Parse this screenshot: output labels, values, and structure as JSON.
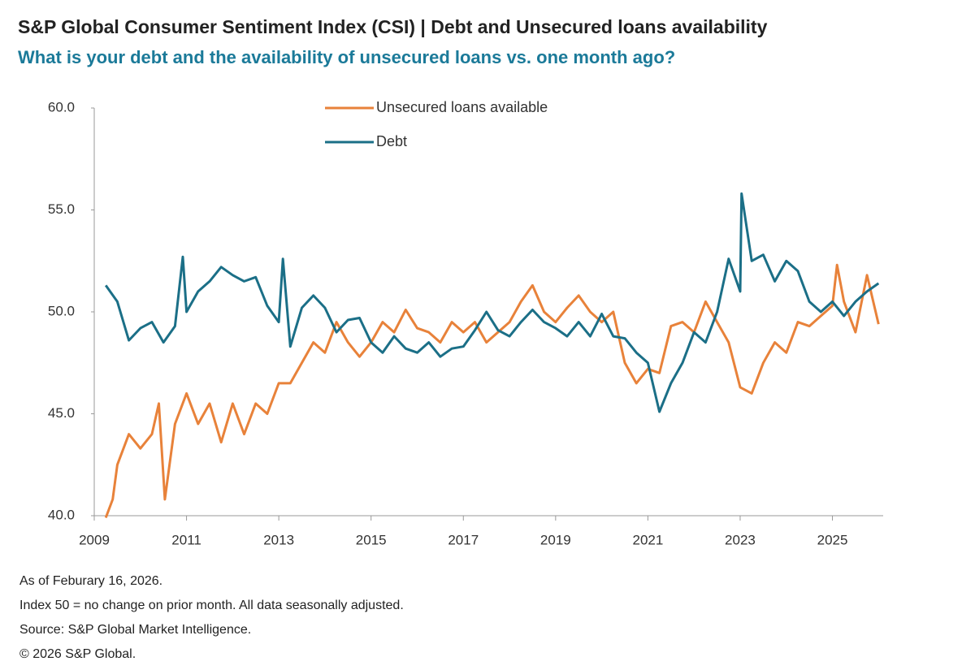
{
  "chart_data": {
    "type": "line",
    "title": "S&P Global Consumer Sentiment Index (CSI) | Debt and Unsecured loans availability",
    "subtitle": "What is your debt and the availability of unsecured loans vs. one month ago?",
    "notes": [
      "As of Feburary 16, 2026.",
      "Index 50 = no change on prior month. All data seasonally adjusted.",
      "Source: S&P Global Market Intelligence.",
      "© 2026 S&P Global."
    ],
    "xlim": [
      2009,
      2026.1
    ],
    "xticks": [
      2009,
      2011,
      2013,
      2015,
      2017,
      2019,
      2021,
      2023,
      2025
    ],
    "ylim": [
      40,
      60
    ],
    "yticks": [
      {
        "value": 40,
        "label": "40.0"
      },
      {
        "value": 45,
        "label": "45.0"
      },
      {
        "value": 50,
        "label": "50.0"
      },
      {
        "value": 55,
        "label": "55.0"
      },
      {
        "value": 60,
        "label": "60.0"
      }
    ],
    "grid": false,
    "series": [
      {
        "name": "Unsecured loans available",
        "color": "#e8823a",
        "x": [
          2009.25,
          2009.4,
          2009.5,
          2009.75,
          2010.0,
          2010.25,
          2010.4,
          2010.53,
          2010.75,
          2011.0,
          2011.25,
          2011.5,
          2011.75,
          2012.0,
          2012.25,
          2012.5,
          2012.75,
          2013.0,
          2013.25,
          2013.5,
          2013.75,
          2014.0,
          2014.25,
          2014.5,
          2014.75,
          2015.0,
          2015.25,
          2015.5,
          2015.75,
          2016.0,
          2016.25,
          2016.5,
          2016.75,
          2017.0,
          2017.25,
          2017.5,
          2017.75,
          2018.0,
          2018.25,
          2018.5,
          2018.75,
          2019.0,
          2019.25,
          2019.5,
          2019.75,
          2020.0,
          2020.25,
          2020.5,
          2020.75,
          2021.0,
          2021.25,
          2021.5,
          2021.75,
          2022.0,
          2022.25,
          2022.5,
          2022.75,
          2023.0,
          2023.25,
          2023.5,
          2023.75,
          2024.0,
          2024.25,
          2024.5,
          2024.75,
          2025.0,
          2025.1,
          2025.25,
          2025.5,
          2025.75,
          2026.0
        ],
        "values": [
          39.9,
          40.8,
          42.5,
          44.0,
          43.3,
          44.0,
          45.5,
          40.8,
          44.5,
          46.0,
          44.5,
          45.5,
          43.6,
          45.5,
          44.0,
          45.5,
          45.0,
          46.5,
          46.5,
          47.5,
          48.5,
          48.0,
          49.5,
          48.5,
          47.8,
          48.5,
          49.5,
          49.0,
          50.1,
          49.2,
          49.0,
          48.5,
          49.5,
          49.0,
          49.5,
          48.5,
          49.0,
          49.5,
          50.5,
          51.3,
          50.0,
          49.5,
          50.2,
          50.8,
          50.0,
          49.5,
          50.0,
          47.5,
          46.5,
          47.2,
          47.0,
          49.3,
          49.5,
          49.0,
          50.5,
          49.5,
          48.5,
          46.3,
          46.0,
          47.5,
          48.5,
          48.0,
          49.5,
          49.3,
          49.8,
          50.3,
          52.3,
          50.5,
          49.0,
          51.8,
          49.4
        ]
      },
      {
        "name": "Debt",
        "color": "#1b6f87",
        "x": [
          2009.25,
          2009.5,
          2009.75,
          2010.0,
          2010.25,
          2010.5,
          2010.75,
          2010.92,
          2011.0,
          2011.25,
          2011.5,
          2011.75,
          2012.0,
          2012.25,
          2012.5,
          2012.75,
          2013.0,
          2013.09,
          2013.25,
          2013.5,
          2013.75,
          2014.0,
          2014.25,
          2014.5,
          2014.75,
          2015.0,
          2015.25,
          2015.5,
          2015.75,
          2016.0,
          2016.25,
          2016.5,
          2016.75,
          2017.0,
          2017.25,
          2017.5,
          2017.75,
          2018.0,
          2018.25,
          2018.5,
          2018.75,
          2019.0,
          2019.25,
          2019.5,
          2019.75,
          2020.0,
          2020.25,
          2020.5,
          2020.75,
          2021.0,
          2021.25,
          2021.5,
          2021.75,
          2022.0,
          2022.25,
          2022.5,
          2022.75,
          2023.0,
          2023.03,
          2023.25,
          2023.5,
          2023.75,
          2024.0,
          2024.25,
          2024.5,
          2024.75,
          2025.0,
          2025.25,
          2025.5,
          2025.75,
          2026.0
        ],
        "values": [
          51.3,
          50.5,
          48.6,
          49.2,
          49.5,
          48.5,
          49.3,
          52.7,
          50.0,
          51.0,
          51.5,
          52.2,
          51.8,
          51.5,
          51.7,
          50.3,
          49.5,
          52.6,
          48.3,
          50.2,
          50.8,
          50.2,
          49.0,
          49.6,
          49.7,
          48.5,
          48.0,
          48.8,
          48.2,
          48.0,
          48.5,
          47.8,
          48.2,
          48.3,
          49.1,
          50.0,
          49.1,
          48.8,
          49.5,
          50.1,
          49.5,
          49.2,
          48.8,
          49.5,
          48.8,
          49.9,
          48.8,
          48.7,
          48.0,
          47.5,
          45.1,
          46.5,
          47.5,
          49.0,
          48.5,
          50.0,
          52.6,
          51.0,
          55.8,
          52.5,
          52.8,
          51.5,
          52.5,
          52.0,
          50.5,
          50.0,
          50.5,
          49.8,
          50.5,
          51.0,
          51.4
        ]
      }
    ]
  }
}
